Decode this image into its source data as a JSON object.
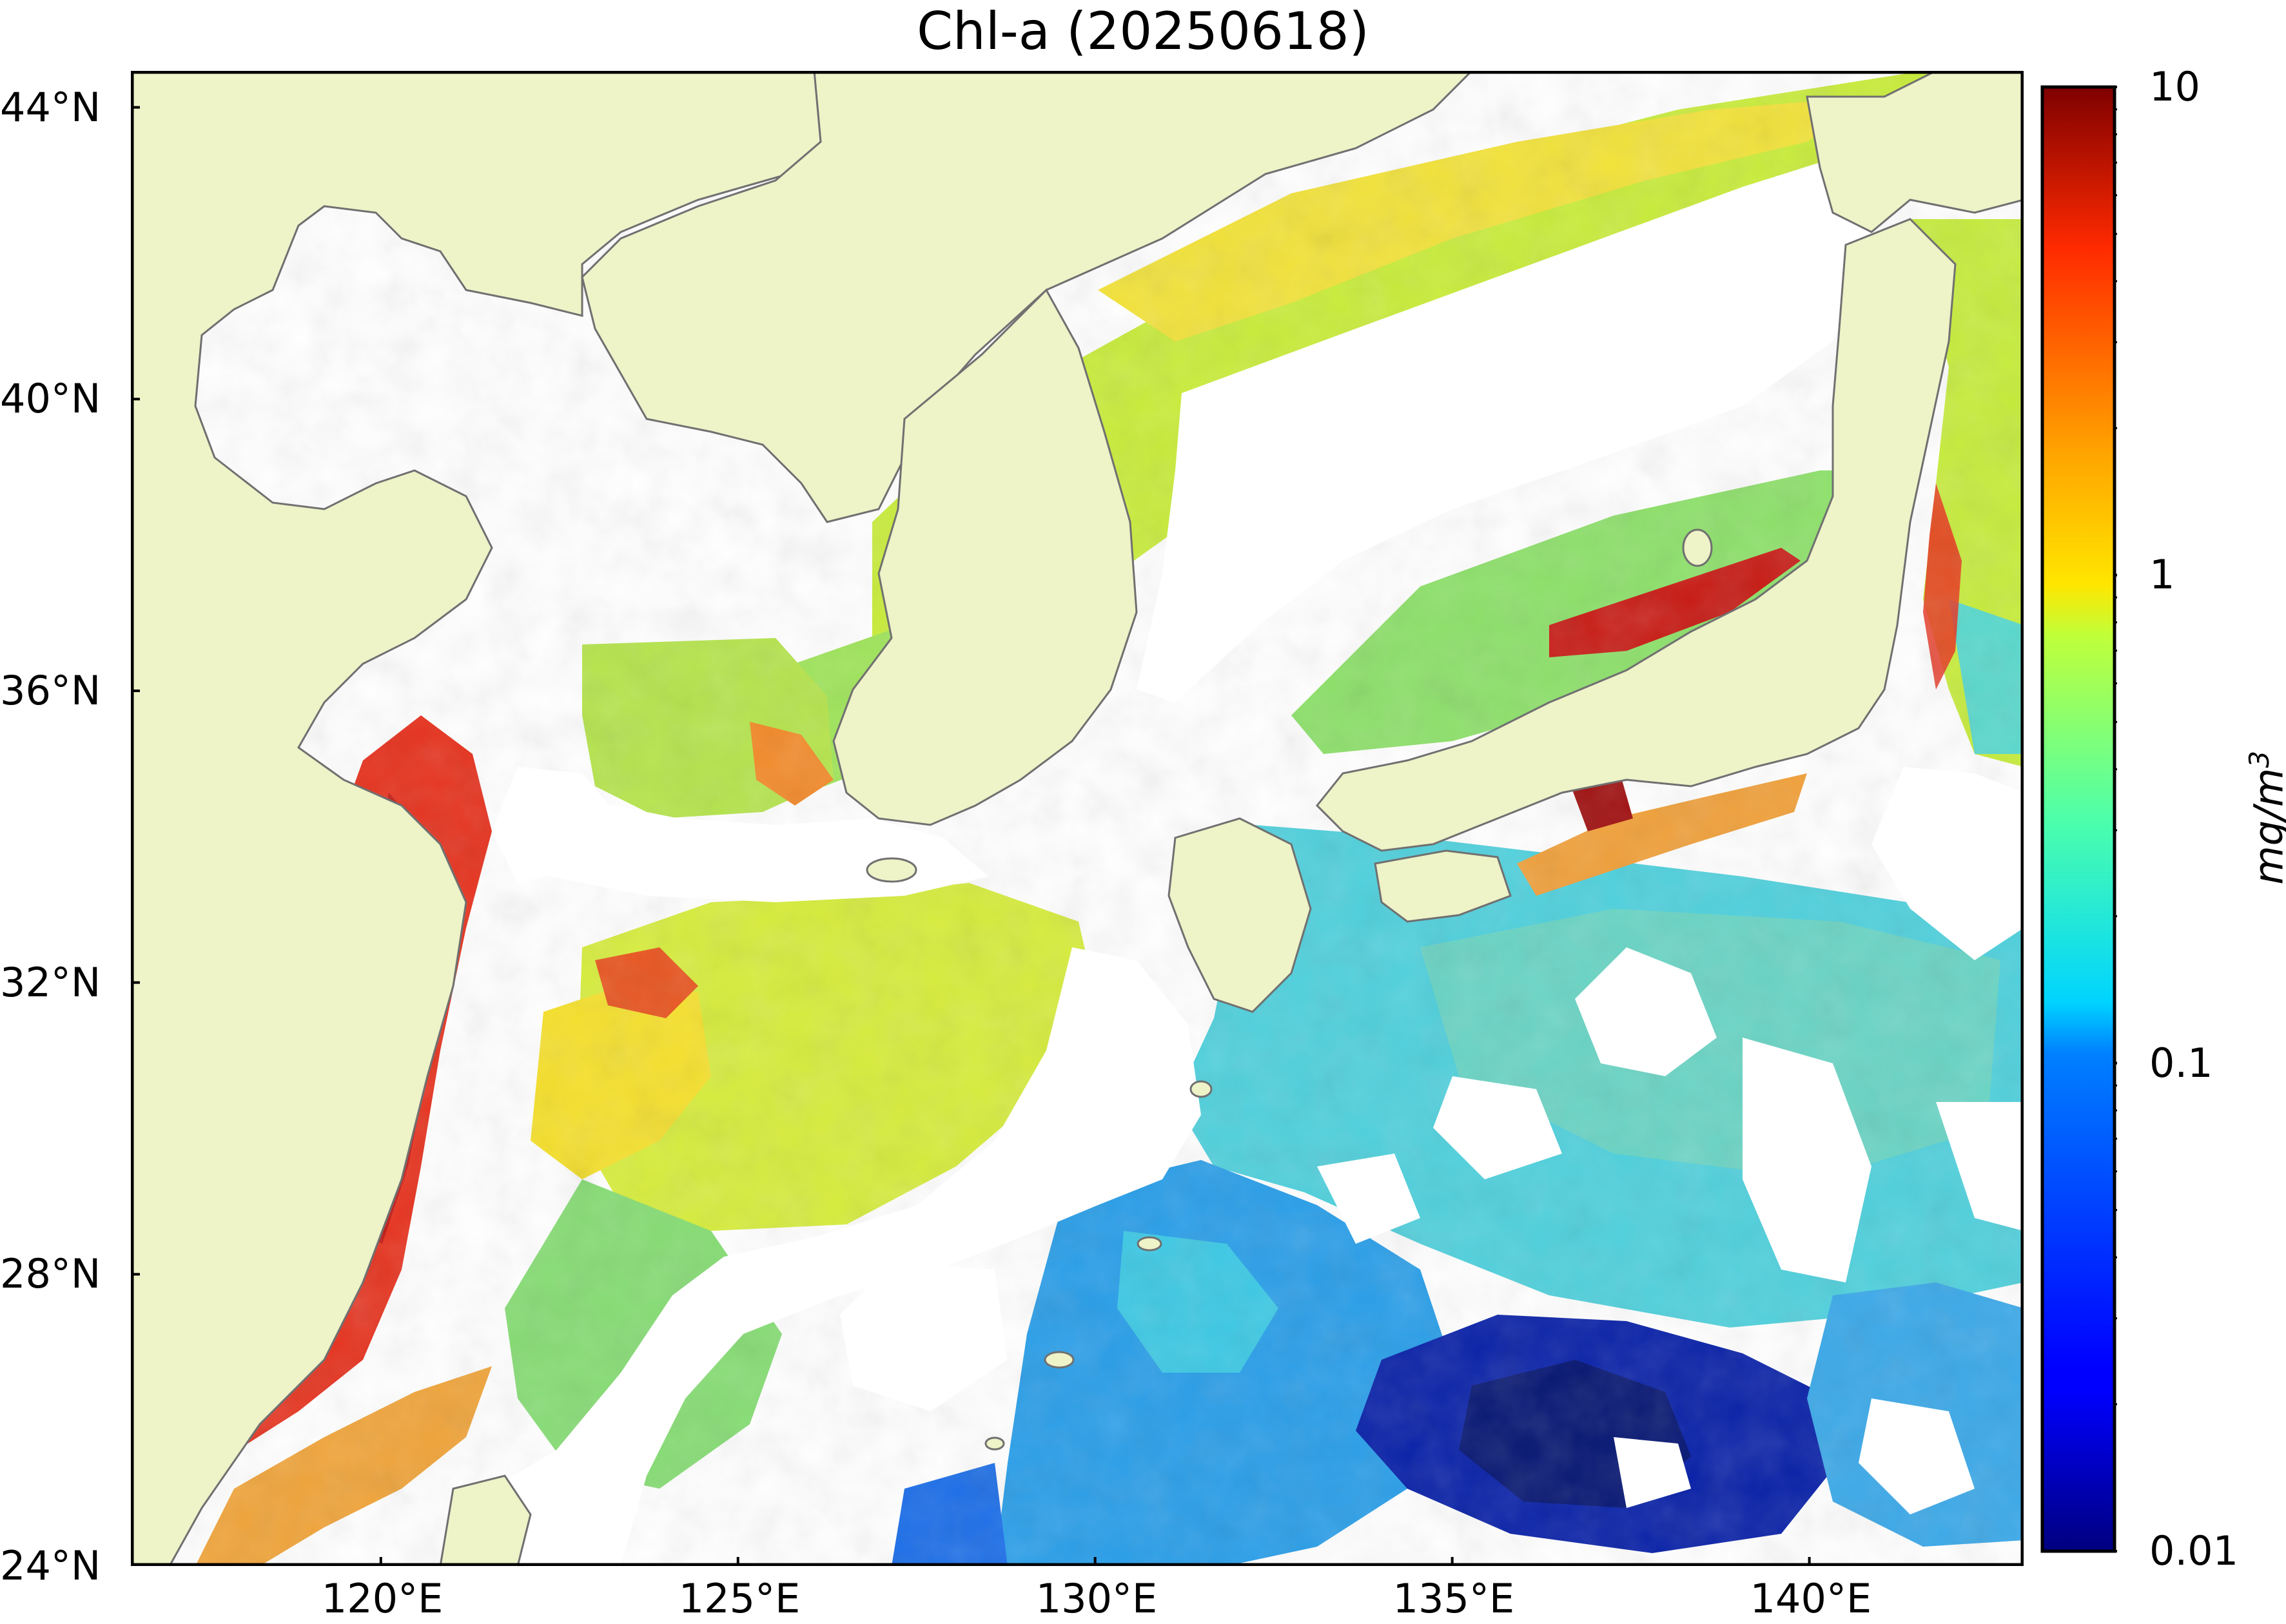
{
  "title": "Chl-a (20250618)",
  "map": {
    "lon_range": [
      116.5,
      143.0
    ],
    "lat_range": [
      24.0,
      44.5
    ],
    "land_color": "#eef3c8",
    "coastline_color": "#707070",
    "no_data_color": "#ffffff",
    "lat_ticks": [
      {
        "value": 44,
        "label": "44°N"
      },
      {
        "value": 40,
        "label": "40°N"
      },
      {
        "value": 36,
        "label": "36°N"
      },
      {
        "value": 32,
        "label": "32°N"
      },
      {
        "value": 28,
        "label": "28°N"
      },
      {
        "value": 24,
        "label": "24°N"
      }
    ],
    "lon_ticks": [
      {
        "value": 120,
        "label": "120°E"
      },
      {
        "value": 125,
        "label": "125°E"
      },
      {
        "value": 130,
        "label": "130°E"
      },
      {
        "value": 135,
        "label": "135°E"
      },
      {
        "value": 140,
        "label": "140°E"
      }
    ]
  },
  "colorbar": {
    "scale": "log",
    "range": [
      0.01,
      10
    ],
    "colormap": "jet",
    "unit": "mg/m",
    "unit_exponent": "3",
    "ticks": [
      {
        "value": 10,
        "label": "10"
      },
      {
        "value": 1,
        "label": "1"
      },
      {
        "value": 0.1,
        "label": "0.1"
      },
      {
        "value": 0.01,
        "label": "0.01"
      }
    ]
  }
}
